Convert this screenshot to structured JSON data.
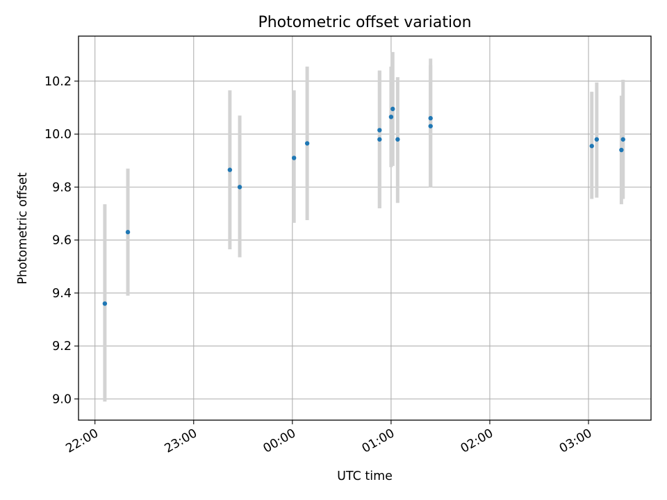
{
  "chart_data": {
    "type": "scatter",
    "title": "Photometric offset variation",
    "xlabel": "UTC time",
    "ylabel": "Photometric offset",
    "x_tick_labels": [
      "22:00",
      "23:00",
      "00:00",
      "01:00",
      "02:00",
      "03:00"
    ],
    "y_tick_labels": [
      "9.0",
      "9.2",
      "9.4",
      "9.6",
      "9.8",
      "10.0",
      "10.2"
    ],
    "xlim": [
      "21:50",
      "03:38"
    ],
    "ylim": [
      8.92,
      10.37
    ],
    "grid": true,
    "legend": "none",
    "series": [
      {
        "marker_color": "#1f77b4",
        "errorbar_color": "#d3d3d3",
        "points": [
          {
            "x": "22:06",
            "y": 9.36,
            "ylow": 8.99,
            "yhigh": 9.735
          },
          {
            "x": "22:20",
            "y": 9.63,
            "ylow": 9.39,
            "yhigh": 9.87
          },
          {
            "x": "23:22",
            "y": 9.865,
            "ylow": 9.565,
            "yhigh": 10.165
          },
          {
            "x": "23:28",
            "y": 9.8,
            "ylow": 9.535,
            "yhigh": 10.07
          },
          {
            "x": "00:01",
            "y": 9.91,
            "ylow": 9.665,
            "yhigh": 10.165
          },
          {
            "x": "00:09",
            "y": 9.965,
            "ylow": 9.675,
            "yhigh": 10.255
          },
          {
            "x": "00:53",
            "y": 10.015,
            "ylow": 9.72,
            "yhigh": 10.24
          },
          {
            "x": "00:53",
            "y": 9.98,
            "ylow": 9.72,
            "yhigh": 10.24
          },
          {
            "x": "01:00",
            "y": 10.065,
            "ylow": 9.875,
            "yhigh": 10.255
          },
          {
            "x": "01:01",
            "y": 10.095,
            "ylow": 9.88,
            "yhigh": 10.31
          },
          {
            "x": "01:04",
            "y": 9.98,
            "ylow": 9.74,
            "yhigh": 10.215
          },
          {
            "x": "01:24",
            "y": 10.06,
            "ylow": 9.8,
            "yhigh": 10.285
          },
          {
            "x": "01:24",
            "y": 10.03,
            "ylow": 9.8,
            "yhigh": 10.26
          },
          {
            "x": "03:02",
            "y": 9.955,
            "ylow": 9.755,
            "yhigh": 10.16
          },
          {
            "x": "03:05",
            "y": 9.98,
            "ylow": 9.76,
            "yhigh": 10.195
          },
          {
            "x": "03:20",
            "y": 9.94,
            "ylow": 9.735,
            "yhigh": 10.145
          },
          {
            "x": "03:21",
            "y": 9.98,
            "ylow": 9.755,
            "yhigh": 10.205
          }
        ]
      }
    ]
  }
}
